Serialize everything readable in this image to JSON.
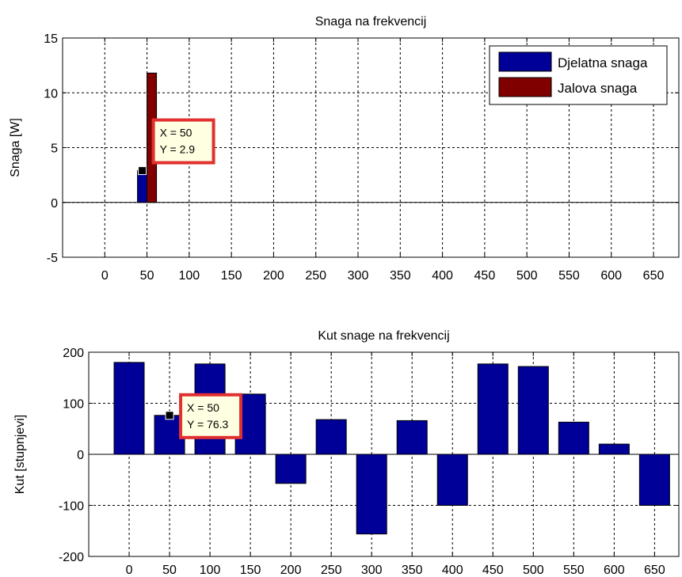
{
  "chart_data": [
    {
      "type": "bar",
      "title": "Snaga na frekvencij",
      "xlabel": "",
      "ylabel": "Snaga [W]",
      "xlim": [
        -50,
        680
      ],
      "ylim": [
        -5,
        15
      ],
      "xticks": [
        0,
        50,
        100,
        150,
        200,
        250,
        300,
        350,
        400,
        450,
        500,
        550,
        600,
        650
      ],
      "yticks": [
        -5,
        0,
        5,
        10,
        15
      ],
      "grid": true,
      "legend_position": "top-right",
      "series": [
        {
          "name": "Djelatna snaga",
          "color": "#000099",
          "x": [
            50
          ],
          "values": [
            2.9
          ]
        },
        {
          "name": "Jalova snaga",
          "color": "#800000",
          "x": [
            50
          ],
          "values": [
            11.8
          ]
        }
      ],
      "datatip": {
        "x": 50,
        "y": 2.9,
        "label_x": "X = 50",
        "label_y": "Y = 2.9"
      }
    },
    {
      "type": "bar",
      "title": "Kut snage na frekvencij",
      "xlabel": "",
      "ylabel": "Kut [stupnjevi]",
      "xlim": [
        -50,
        680
      ],
      "ylim": [
        -200,
        200
      ],
      "xticks": [
        0,
        50,
        100,
        150,
        200,
        250,
        300,
        350,
        400,
        450,
        500,
        550,
        600,
        650
      ],
      "yticks": [
        -200,
        -100,
        0,
        100,
        200
      ],
      "grid": true,
      "series": [
        {
          "color": "#000099",
          "x": [
            0,
            50,
            100,
            150,
            200,
            250,
            300,
            350,
            400,
            450,
            500,
            550,
            600,
            650
          ],
          "values": [
            180,
            76.3,
            177,
            118,
            -57,
            68,
            -156,
            66,
            -100,
            177,
            172,
            63,
            20,
            -100
          ]
        }
      ],
      "datatip": {
        "x": 50,
        "y": 76.3,
        "label_x": "X = 50",
        "label_y": "Y = 76.3"
      }
    }
  ]
}
